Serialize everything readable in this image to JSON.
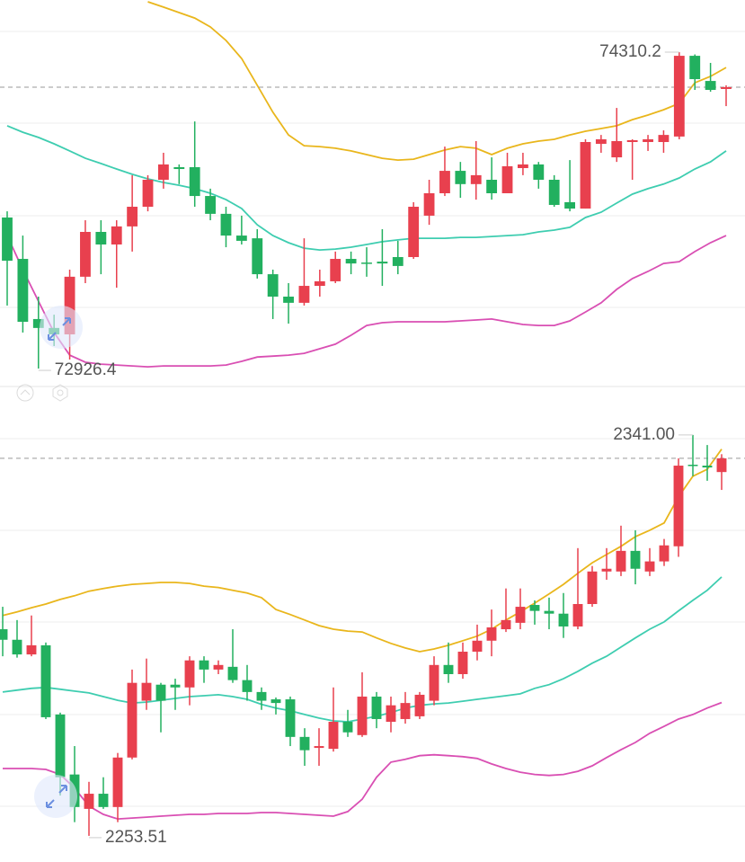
{
  "chart_data": [
    {
      "type": "candlestick",
      "ylim": [
        72848,
        74538
      ],
      "up_color": "#e8404e",
      "down_color": "#22b05f",
      "open": [
        73587,
        73406,
        73143,
        73104,
        73076,
        73328,
        73524,
        73469,
        73548,
        73634,
        73752,
        73807,
        73807,
        73681,
        73603,
        73508,
        73496,
        73339,
        73241,
        73214,
        73288,
        73308,
        73406,
        73390,
        73394,
        73414,
        73414,
        73595,
        73693,
        73791,
        73733,
        73752,
        73693,
        73803,
        73819,
        73752,
        73654,
        73626,
        73909,
        73850,
        73917,
        73917,
        73917,
        73941,
        74294,
        74184,
        74149
      ],
      "high": [
        73614,
        73508,
        73241,
        73162,
        73359,
        73575,
        73575,
        73575,
        73772,
        73772,
        73870,
        73819,
        74007,
        73713,
        73634,
        73595,
        73536,
        73359,
        73300,
        73496,
        73359,
        73438,
        73438,
        73457,
        73536,
        73485,
        73654,
        73752,
        73897,
        73830,
        73921,
        73850,
        73870,
        73870,
        73830,
        73772,
        73838,
        73929,
        73948,
        74066,
        73929,
        73948,
        73968,
        74310.2,
        74300,
        74263,
        74165
      ],
      "low": [
        73202,
        73084,
        72926.4,
        73025,
        72966,
        73300,
        73339,
        73280,
        73438,
        73614,
        73713,
        73733,
        73634,
        73575,
        73457,
        73469,
        73320,
        73143,
        73123,
        73202,
        73241,
        73300,
        73339,
        73328,
        73288,
        73339,
        73406,
        73555,
        73681,
        73673,
        73665,
        73665,
        73693,
        73772,
        73713,
        73634,
        73614,
        73626,
        73870,
        73830,
        73752,
        73878,
        73870,
        73929,
        74145,
        74137,
        74074
      ],
      "close": [
        73398,
        73131,
        73104,
        73076,
        73328,
        73524,
        73469,
        73548,
        73634,
        73752,
        73819,
        73799,
        73681,
        73603,
        73508,
        73485,
        73339,
        73241,
        73214,
        73288,
        73308,
        73406,
        73386,
        73386,
        73386,
        73375,
        73634,
        73693,
        73791,
        73733,
        73772,
        73693,
        73811,
        73819,
        73752,
        73642,
        73626,
        73917,
        73929,
        73921,
        73925,
        73929,
        73948,
        74294,
        74192,
        74145,
        74157
      ],
      "high_labels": [
        null,
        null,
        null,
        null,
        null,
        null,
        null,
        null,
        null,
        null,
        null,
        null,
        null,
        null,
        null,
        null,
        null,
        null,
        null,
        null,
        null,
        null,
        null,
        null,
        null,
        null,
        null,
        null,
        null,
        null,
        null,
        null,
        null,
        null,
        null,
        null,
        null,
        null,
        null,
        null,
        null,
        null,
        null,
        "74310.2",
        null,
        null,
        null
      ],
      "low_labels": [
        null,
        null,
        "72926.4",
        null,
        null,
        null,
        null,
        null,
        null,
        null,
        null,
        null,
        null,
        null,
        null,
        null,
        null,
        null,
        null,
        null,
        null,
        null,
        null,
        null,
        null,
        null,
        null,
        null,
        null,
        null,
        null,
        null,
        null,
        null,
        null,
        null,
        null,
        null,
        null,
        null,
        null,
        null,
        null,
        null,
        null,
        null,
        null
      ],
      "lines": [
        {
          "color": "#e9b61c",
          "values": [
            null,
            null,
            null,
            null,
            null,
            null,
            null,
            null,
            null,
            74530,
            74507,
            74483,
            74459,
            74420,
            74361,
            74282,
            74165,
            74047,
            73948,
            73901,
            73897,
            73890,
            73878,
            73862,
            73846,
            73838,
            73842,
            73862,
            73882,
            73897,
            73890,
            73862,
            73890,
            73909,
            73921,
            73929,
            73948,
            73964,
            73976,
            73988,
            74015,
            74035,
            74058,
            74086,
            74176,
            74204,
            74243
          ]
        },
        {
          "color": "#3ecdb0",
          "values": [
            73988,
            73960,
            73937,
            73909,
            73878,
            73846,
            73823,
            73799,
            73776,
            73756,
            73740,
            73728,
            73713,
            73693,
            73665,
            73626,
            73555,
            73508,
            73477,
            73453,
            73445,
            73449,
            73457,
            73469,
            73481,
            73489,
            73496,
            73496,
            73496,
            73500,
            73500,
            73504,
            73508,
            73512,
            73524,
            73532,
            73544,
            73587,
            73610,
            73650,
            73689,
            73713,
            73733,
            73760,
            73799,
            73830,
            73878
          ]
        },
        {
          "color": "#d94fb3",
          "values": [
            73508,
            73359,
            73221,
            73084,
            72985,
            72954,
            72946,
            72942,
            72938,
            72934,
            72938,
            72938,
            72938,
            72938,
            72942,
            72958,
            72977,
            72981,
            72985,
            72993,
            73013,
            73033,
            73072,
            73115,
            73127,
            73131,
            73131,
            73131,
            73131,
            73135,
            73139,
            73143,
            73131,
            73119,
            73115,
            73115,
            73135,
            73174,
            73214,
            73273,
            73320,
            73351,
            73386,
            73394,
            73438,
            73477,
            73508
          ]
        }
      ]
    },
    {
      "type": "candlestick",
      "ylim": [
        2248,
        2350
      ],
      "up_color": "#e8404e",
      "down_color": "#22b05f",
      "open": [
        2298.6,
        2296.3,
        2293.1,
        2295.1,
        2280.0,
        2266.9,
        2259.4,
        2262.7,
        2259.8,
        2270.6,
        2283.0,
        2286.5,
        2286.5,
        2285.9,
        2291.8,
        2289.8,
        2290.4,
        2287.5,
        2284.9,
        2283.3,
        2283.3,
        2275.1,
        2272.7,
        2272.5,
        2278.4,
        2275.5,
        2283.9,
        2278.4,
        2279.0,
        2279.6,
        2283.0,
        2290.8,
        2288.8,
        2293.7,
        2296.1,
        2298.6,
        2300.0,
        2303.9,
        2302.6,
        2302.0,
        2299.2,
        2304.1,
        2311.2,
        2311.2,
        2315.7,
        2311.2,
        2313.4,
        2316.7,
        2334.5,
        2334.3,
        2332.9
      ],
      "high": [
        2303.5,
        2300.6,
        2301.6,
        2295.7,
        2280.4,
        2273.1,
        2265.3,
        2266.3,
        2271.6,
        2289.8,
        2292.2,
        2286.9,
        2287.8,
        2292.7,
        2292.7,
        2291.8,
        2298.6,
        2290.8,
        2285.9,
        2283.7,
        2283.9,
        2277.0,
        2277.0,
        2285.9,
        2281.0,
        2289.2,
        2284.9,
        2283.9,
        2284.9,
        2284.9,
        2292.7,
        2295.7,
        2295.7,
        2299.6,
        2302.9,
        2307.5,
        2307.5,
        2304.9,
        2305.5,
        2306.5,
        2316.3,
        2312.4,
        2316.3,
        2321.2,
        2320.2,
        2316.3,
        2318.3,
        2335.9,
        2341,
        2338.8,
        2336.8
      ],
      "low": [
        2292.7,
        2292.4,
        2292.7,
        2279.0,
        2262.3,
        2256.5,
        2253.51,
        2259.4,
        2256.5,
        2270.2,
        2281.0,
        2276.1,
        2281.0,
        2282.0,
        2286.9,
        2288.8,
        2286.9,
        2283.0,
        2281.0,
        2280.0,
        2273.1,
        2268.8,
        2268.8,
        2271.9,
        2275.1,
        2275.1,
        2277.0,
        2276.1,
        2278.0,
        2279.0,
        2282.0,
        2286.9,
        2287.8,
        2291.8,
        2292.7,
        2298.0,
        2298.6,
        2299.6,
        2298.6,
        2296.7,
        2298.6,
        2303.5,
        2309.4,
        2310.2,
        2308.4,
        2310.2,
        2312.4,
        2314.4,
        2332.0,
        2331.0,
        2329.0
      ],
      "close": [
        2296.3,
        2293.1,
        2295.1,
        2279.4,
        2266.3,
        2259.8,
        2262.7,
        2259.8,
        2270.6,
        2286.9,
        2286.9,
        2283.0,
        2285.9,
        2291.8,
        2289.8,
        2290.8,
        2287.5,
        2284.9,
        2283.0,
        2282.5,
        2275.1,
        2272.2,
        2273.1,
        2278.4,
        2276.1,
        2283.9,
        2279.0,
        2282.0,
        2282.5,
        2284.3,
        2290.8,
        2288.8,
        2293.7,
        2296.1,
        2299.0,
        2300.6,
        2303.5,
        2302.6,
        2302.0,
        2299.2,
        2304.1,
        2311.2,
        2311.8,
        2315.7,
        2311.8,
        2313.4,
        2316.9,
        2334.3,
        2334.3,
        2333.9,
        2335.9
      ],
      "high_labels": [
        null,
        null,
        null,
        null,
        null,
        null,
        null,
        null,
        null,
        null,
        null,
        null,
        null,
        null,
        null,
        null,
        null,
        null,
        null,
        null,
        null,
        null,
        null,
        null,
        null,
        null,
        null,
        null,
        null,
        null,
        null,
        null,
        null,
        null,
        null,
        null,
        null,
        null,
        null,
        null,
        null,
        null,
        null,
        null,
        null,
        null,
        null,
        null,
        "2341.00",
        null,
        null
      ],
      "low_labels": [
        null,
        null,
        null,
        null,
        null,
        null,
        "2253.51",
        null,
        null,
        null,
        null,
        null,
        null,
        null,
        null,
        null,
        null,
        null,
        null,
        null,
        null,
        null,
        null,
        null,
        null,
        null,
        null,
        null,
        null,
        null,
        null,
        null,
        null,
        null,
        null,
        null,
        null,
        null,
        null,
        null,
        null,
        null,
        null,
        null,
        null,
        null,
        null,
        null,
        null,
        null,
        null
      ],
      "lines": [
        {
          "color": "#e9b61c",
          "values": [
            2301.6,
            2302.4,
            2303.3,
            2304.1,
            2305.1,
            2305.9,
            2306.9,
            2307.5,
            2308.0,
            2308.4,
            2308.6,
            2308.8,
            2308.8,
            2308.6,
            2308.0,
            2307.7,
            2307.1,
            2306.5,
            2305.5,
            2302.9,
            2301.8,
            2300.6,
            2299.4,
            2298.6,
            2298.2,
            2298.0,
            2296.7,
            2295.5,
            2294.5,
            2293.7,
            2294.3,
            2295.1,
            2296.1,
            2297.1,
            2298.6,
            2300.6,
            2302.4,
            2304.3,
            2306.3,
            2308.4,
            2310.8,
            2313.1,
            2314.9,
            2316.7,
            2318.8,
            2320.2,
            2321.8,
            2327.5,
            2332.0,
            2333.5,
            2337.9
          ]
        },
        {
          "color": "#3ecdb0",
          "values": [
            2284.9,
            2285.3,
            2285.7,
            2285.9,
            2285.5,
            2285.1,
            2284.7,
            2283.9,
            2283.1,
            2282.5,
            2282.7,
            2283.1,
            2283.5,
            2283.9,
            2284.1,
            2284.3,
            2283.9,
            2283.3,
            2282.2,
            2281.4,
            2280.8,
            2280.0,
            2279.2,
            2278.6,
            2278.4,
            2279.0,
            2279.6,
            2280.4,
            2281.4,
            2282.0,
            2282.3,
            2282.5,
            2282.9,
            2283.3,
            2283.7,
            2284.1,
            2284.5,
            2285.7,
            2286.5,
            2287.8,
            2289.4,
            2291.2,
            2292.7,
            2294.7,
            2296.7,
            2298.6,
            2300.2,
            2302.6,
            2304.9,
            2307.1,
            2310.0
          ]
        },
        {
          "color": "#d94fb3",
          "values": [
            2268.2,
            2268.2,
            2268.2,
            2268.0,
            2266.9,
            2263.9,
            2260.0,
            2258.2,
            2257.2,
            2257.4,
            2257.6,
            2257.8,
            2258.0,
            2258.2,
            2258.2,
            2258.4,
            2258.4,
            2258.4,
            2258.6,
            2258.6,
            2258.4,
            2258.2,
            2258.0,
            2257.8,
            2258.8,
            2261.5,
            2266.3,
            2269.6,
            2270.2,
            2271.0,
            2271.2,
            2271.0,
            2270.8,
            2270.4,
            2269.2,
            2268.2,
            2267.4,
            2266.9,
            2266.7,
            2266.9,
            2267.6,
            2268.8,
            2270.6,
            2272.3,
            2273.9,
            2275.9,
            2277.4,
            2279.0,
            2280.0,
            2281.4,
            2282.6
          ]
        }
      ]
    }
  ]
}
